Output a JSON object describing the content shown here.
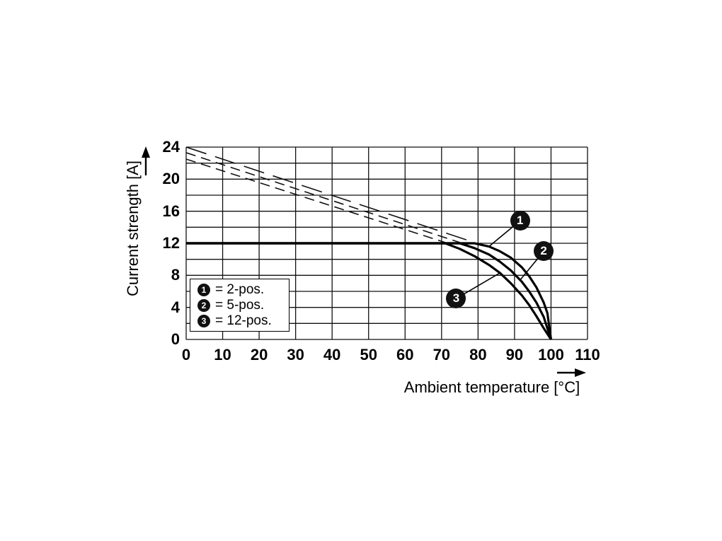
{
  "chart_data": {
    "type": "line",
    "title": "",
    "xlabel": "Ambient temperature [°C]",
    "ylabel": "Current strength [A]",
    "xlim": [
      0,
      110
    ],
    "ylim": [
      0,
      24
    ],
    "x_ticks": [
      0,
      10,
      20,
      30,
      40,
      50,
      60,
      70,
      80,
      90,
      100,
      110
    ],
    "y_ticks": [
      0,
      4,
      8,
      12,
      16,
      20,
      24
    ],
    "y_grid_ticks": [
      0,
      2,
      4,
      6,
      8,
      10,
      12,
      14,
      16,
      18,
      20,
      22,
      24
    ],
    "grid": true,
    "line_color": "#000000",
    "series": [
      {
        "name": "2-pos.",
        "badge": "1",
        "style": "solid",
        "points": [
          [
            0,
            12
          ],
          [
            79,
            12
          ],
          [
            83,
            11.6
          ],
          [
            86,
            11.0
          ],
          [
            89,
            10.2
          ],
          [
            92,
            9.0
          ],
          [
            94,
            7.9
          ],
          [
            96,
            6.5
          ],
          [
            98,
            4.6
          ],
          [
            99,
            3.3
          ],
          [
            100,
            0
          ]
        ]
      },
      {
        "name": "5-pos.",
        "badge": "2",
        "style": "solid",
        "points": [
          [
            0,
            12
          ],
          [
            75,
            12
          ],
          [
            79,
            11.4
          ],
          [
            83,
            10.6
          ],
          [
            86,
            9.7
          ],
          [
            89,
            8.6
          ],
          [
            92,
            7.2
          ],
          [
            94,
            6.0
          ],
          [
            96,
            4.6
          ],
          [
            98,
            2.8
          ],
          [
            100,
            0
          ]
        ]
      },
      {
        "name": "12-pos.",
        "badge": "3",
        "style": "solid",
        "points": [
          [
            0,
            12
          ],
          [
            71,
            12
          ],
          [
            75,
            11.3
          ],
          [
            79,
            10.4
          ],
          [
            83,
            9.3
          ],
          [
            86,
            8.3
          ],
          [
            89,
            7.0
          ],
          [
            92,
            5.5
          ],
          [
            94,
            4.3
          ],
          [
            96,
            2.9
          ],
          [
            98,
            1.4
          ],
          [
            100,
            0
          ]
        ]
      }
    ],
    "dashed_series": [
      {
        "for_badge": "1",
        "dash": "long",
        "points": [
          [
            0,
            24.0
          ],
          [
            79,
            12.1
          ]
        ]
      },
      {
        "for_badge": "2",
        "dash": "medium",
        "points": [
          [
            0,
            23.3
          ],
          [
            75,
            12.1
          ]
        ]
      },
      {
        "for_badge": "3",
        "dash": "medium",
        "points": [
          [
            0,
            22.5
          ],
          [
            71,
            12.1
          ]
        ]
      }
    ],
    "annotations": [
      {
        "badge": "1",
        "badge_x": 91.5,
        "badge_y": 14.8,
        "tip_x": 83.0,
        "tip_y": 11.6
      },
      {
        "badge": "2",
        "badge_x": 98.0,
        "badge_y": 11.0,
        "tip_x": 91.5,
        "tip_y": 7.4
      },
      {
        "badge": "3",
        "badge_x": 74.0,
        "badge_y": 5.1,
        "tip_x": 86.0,
        "tip_y": 8.3
      }
    ]
  },
  "legend": {
    "items": [
      {
        "badge": "1",
        "label": "= 2-pos."
      },
      {
        "badge": "2",
        "label": "= 5-pos."
      },
      {
        "badge": "3",
        "label": "= 12-pos."
      }
    ]
  }
}
